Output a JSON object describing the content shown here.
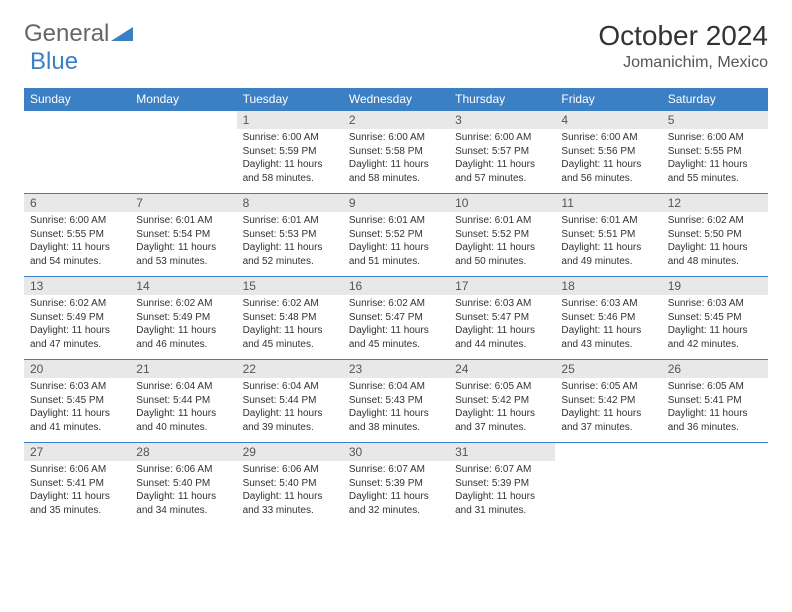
{
  "brand": {
    "part1": "General",
    "part2": "Blue"
  },
  "title": "October 2024",
  "location": "Jomanichim, Mexico",
  "colors": {
    "header_bg": "#3b7fc4",
    "header_text": "#ffffff",
    "daynum_bg": "#e8e8e8",
    "border": "#3b7fc4",
    "text": "#333333",
    "page_bg": "#ffffff"
  },
  "day_names": [
    "Sunday",
    "Monday",
    "Tuesday",
    "Wednesday",
    "Thursday",
    "Friday",
    "Saturday"
  ],
  "weeks": [
    [
      null,
      null,
      {
        "n": "1",
        "sr": "6:00 AM",
        "ss": "5:59 PM",
        "dl": "11 hours and 58 minutes."
      },
      {
        "n": "2",
        "sr": "6:00 AM",
        "ss": "5:58 PM",
        "dl": "11 hours and 58 minutes."
      },
      {
        "n": "3",
        "sr": "6:00 AM",
        "ss": "5:57 PM",
        "dl": "11 hours and 57 minutes."
      },
      {
        "n": "4",
        "sr": "6:00 AM",
        "ss": "5:56 PM",
        "dl": "11 hours and 56 minutes."
      },
      {
        "n": "5",
        "sr": "6:00 AM",
        "ss": "5:55 PM",
        "dl": "11 hours and 55 minutes."
      }
    ],
    [
      {
        "n": "6",
        "sr": "6:00 AM",
        "ss": "5:55 PM",
        "dl": "11 hours and 54 minutes."
      },
      {
        "n": "7",
        "sr": "6:01 AM",
        "ss": "5:54 PM",
        "dl": "11 hours and 53 minutes."
      },
      {
        "n": "8",
        "sr": "6:01 AM",
        "ss": "5:53 PM",
        "dl": "11 hours and 52 minutes."
      },
      {
        "n": "9",
        "sr": "6:01 AM",
        "ss": "5:52 PM",
        "dl": "11 hours and 51 minutes."
      },
      {
        "n": "10",
        "sr": "6:01 AM",
        "ss": "5:52 PM",
        "dl": "11 hours and 50 minutes."
      },
      {
        "n": "11",
        "sr": "6:01 AM",
        "ss": "5:51 PM",
        "dl": "11 hours and 49 minutes."
      },
      {
        "n": "12",
        "sr": "6:02 AM",
        "ss": "5:50 PM",
        "dl": "11 hours and 48 minutes."
      }
    ],
    [
      {
        "n": "13",
        "sr": "6:02 AM",
        "ss": "5:49 PM",
        "dl": "11 hours and 47 minutes."
      },
      {
        "n": "14",
        "sr": "6:02 AM",
        "ss": "5:49 PM",
        "dl": "11 hours and 46 minutes."
      },
      {
        "n": "15",
        "sr": "6:02 AM",
        "ss": "5:48 PM",
        "dl": "11 hours and 45 minutes."
      },
      {
        "n": "16",
        "sr": "6:02 AM",
        "ss": "5:47 PM",
        "dl": "11 hours and 45 minutes."
      },
      {
        "n": "17",
        "sr": "6:03 AM",
        "ss": "5:47 PM",
        "dl": "11 hours and 44 minutes."
      },
      {
        "n": "18",
        "sr": "6:03 AM",
        "ss": "5:46 PM",
        "dl": "11 hours and 43 minutes."
      },
      {
        "n": "19",
        "sr": "6:03 AM",
        "ss": "5:45 PM",
        "dl": "11 hours and 42 minutes."
      }
    ],
    [
      {
        "n": "20",
        "sr": "6:03 AM",
        "ss": "5:45 PM",
        "dl": "11 hours and 41 minutes."
      },
      {
        "n": "21",
        "sr": "6:04 AM",
        "ss": "5:44 PM",
        "dl": "11 hours and 40 minutes."
      },
      {
        "n": "22",
        "sr": "6:04 AM",
        "ss": "5:44 PM",
        "dl": "11 hours and 39 minutes."
      },
      {
        "n": "23",
        "sr": "6:04 AM",
        "ss": "5:43 PM",
        "dl": "11 hours and 38 minutes."
      },
      {
        "n": "24",
        "sr": "6:05 AM",
        "ss": "5:42 PM",
        "dl": "11 hours and 37 minutes."
      },
      {
        "n": "25",
        "sr": "6:05 AM",
        "ss": "5:42 PM",
        "dl": "11 hours and 37 minutes."
      },
      {
        "n": "26",
        "sr": "6:05 AM",
        "ss": "5:41 PM",
        "dl": "11 hours and 36 minutes."
      }
    ],
    [
      {
        "n": "27",
        "sr": "6:06 AM",
        "ss": "5:41 PM",
        "dl": "11 hours and 35 minutes."
      },
      {
        "n": "28",
        "sr": "6:06 AM",
        "ss": "5:40 PM",
        "dl": "11 hours and 34 minutes."
      },
      {
        "n": "29",
        "sr": "6:06 AM",
        "ss": "5:40 PM",
        "dl": "11 hours and 33 minutes."
      },
      {
        "n": "30",
        "sr": "6:07 AM",
        "ss": "5:39 PM",
        "dl": "11 hours and 32 minutes."
      },
      {
        "n": "31",
        "sr": "6:07 AM",
        "ss": "5:39 PM",
        "dl": "11 hours and 31 minutes."
      },
      null,
      null
    ]
  ],
  "labels": {
    "sunrise": "Sunrise:",
    "sunset": "Sunset:",
    "daylight": "Daylight:"
  }
}
